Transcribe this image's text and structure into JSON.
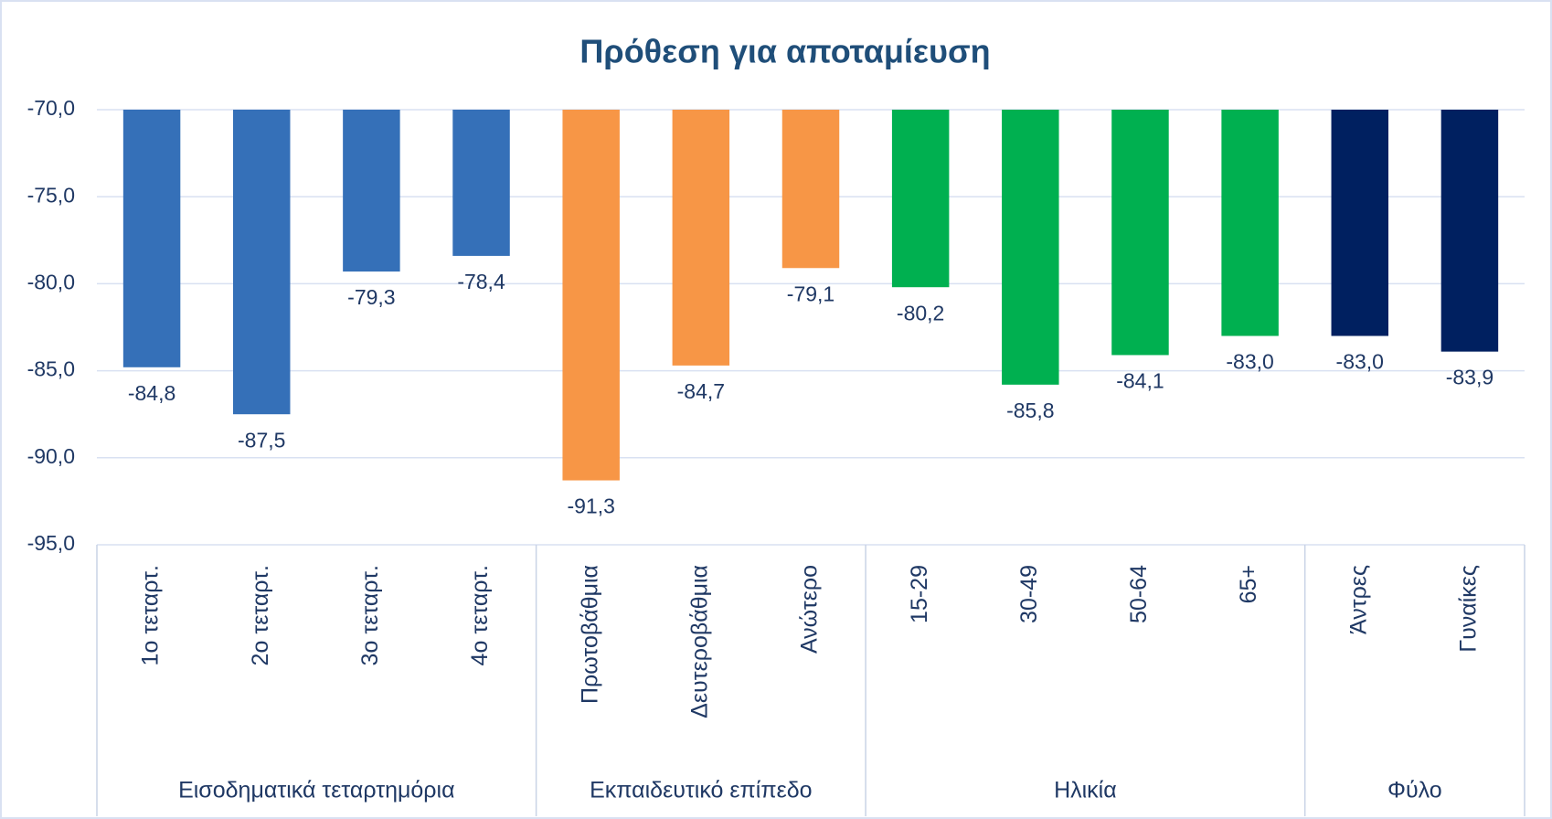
{
  "chart_data": {
    "type": "bar",
    "title": "Πρόθεση για αποταμίευση",
    "ylim": [
      -95,
      -70
    ],
    "yticks": [
      {
        "value": -70,
        "label": "-70,0"
      },
      {
        "value": -75,
        "label": "-75,0"
      },
      {
        "value": -80,
        "label": "-80,0"
      },
      {
        "value": -85,
        "label": "-85,0"
      },
      {
        "value": -90,
        "label": "-90,0"
      },
      {
        "value": -95,
        "label": "-95,0"
      }
    ],
    "grid": true,
    "series": [
      {
        "name": "Εισοδηματικά τεταρτημόρια",
        "color": "#3570b8",
        "categories": [
          "1ο τεταρτ.",
          "2ο τεταρτ.",
          "3ο τεταρτ.",
          "4ο τεταρτ."
        ],
        "values": [
          -84.8,
          -87.5,
          -79.3,
          -78.4
        ],
        "value_labels": [
          "-84,8",
          "-87,5",
          "-79,3",
          "-78,4"
        ]
      },
      {
        "name": "Εκπαιδευτικό επίπεδο",
        "color": "#f79646",
        "categories": [
          "Πρωτοβάθμια",
          "Δευτεροβάθμια",
          "Ανώτερο"
        ],
        "values": [
          -91.3,
          -84.7,
          -79.1
        ],
        "value_labels": [
          "-91,3",
          "-84,7",
          "-79,1"
        ]
      },
      {
        "name": "Ηλικία",
        "color": "#00b050",
        "categories": [
          "15-29",
          "30-49",
          "50-64",
          "65+"
        ],
        "values": [
          -80.2,
          -85.8,
          -84.1,
          -83.0
        ],
        "value_labels": [
          "-80,2",
          "-85,8",
          "-84,1",
          "-83,0"
        ]
      },
      {
        "name": "Φύλο",
        "color": "#002060",
        "categories": [
          "Άντρες",
          "Γυναίκες"
        ],
        "values": [
          -83.0,
          -83.9
        ],
        "value_labels": [
          "-83,0",
          "-83,9"
        ]
      }
    ]
  }
}
